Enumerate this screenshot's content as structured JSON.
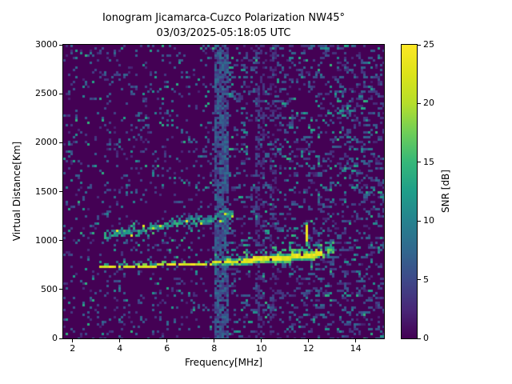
{
  "chart_data": {
    "type": "heatmap",
    "title": "Ionogram Jicamarca-Cuzco Polarization NW45°",
    "subtitle": "03/03/2025-05:18:05 UTC",
    "xlabel": "Frequency[MHz]",
    "ylabel": "Virtual Distance[Km]",
    "x_range": [
      1.6,
      15.2
    ],
    "y_range": [
      0,
      3000
    ],
    "x_ticks": [
      2,
      4,
      6,
      8,
      10,
      12,
      14
    ],
    "y_ticks": [
      0,
      500,
      1000,
      1500,
      2000,
      2500,
      3000
    ],
    "grid": false,
    "background_color": "#ffffff",
    "colorbar": {
      "label": "SNR [dB]",
      "range": [
        0,
        25
      ],
      "ticks": [
        0,
        5,
        10,
        15,
        20,
        25
      ],
      "colormap": "viridis",
      "stops": [
        [
          0.0,
          "#440154"
        ],
        [
          0.1,
          "#482878"
        ],
        [
          0.2,
          "#3e4989"
        ],
        [
          0.3,
          "#31688e"
        ],
        [
          0.4,
          "#26828e"
        ],
        [
          0.5,
          "#1f9e89"
        ],
        [
          0.6,
          "#35b779"
        ],
        [
          0.7,
          "#6ece58"
        ],
        [
          0.8,
          "#b5de2b"
        ],
        [
          0.9,
          "#dce319"
        ],
        [
          1.0,
          "#fde725"
        ]
      ]
    },
    "noise": {
      "background_db": 0,
      "speckle_db_range": [
        2,
        15
      ],
      "base_density": 0.11,
      "right_side_extra_density": 0.14
    },
    "interference_bands": [
      {
        "freq_mhz": 8.3,
        "width_mhz": 0.55,
        "db": 6,
        "density": 0.8
      },
      {
        "freq_mhz": 9.8,
        "width_mhz": 0.1,
        "db": 4,
        "density": 0.5
      },
      {
        "freq_mhz": 10.05,
        "width_mhz": 0.15,
        "db": 3,
        "density": 0.3
      },
      {
        "freq_mhz": 10.5,
        "width_mhz": 0.25,
        "db": 3,
        "density": 0.3
      }
    ],
    "echo_traces": [
      {
        "name": "main F-region echo",
        "style": "bright",
        "freq_span_mhz": [
          3.2,
          13.05
        ],
        "points_freq_km": [
          [
            3.2,
            728
          ],
          [
            4,
            733
          ],
          [
            5,
            740
          ],
          [
            6,
            747
          ],
          [
            7,
            756
          ],
          [
            8,
            768
          ],
          [
            9,
            790
          ],
          [
            10,
            808
          ],
          [
            11,
            828
          ],
          [
            12,
            850
          ],
          [
            12.5,
            862
          ],
          [
            13,
            882
          ]
        ],
        "thickness_freq_km": [
          [
            3.2,
            15
          ],
          [
            7.5,
            20
          ],
          [
            8,
            40
          ],
          [
            9,
            60
          ],
          [
            10,
            70
          ],
          [
            11,
            80
          ],
          [
            12,
            85
          ],
          [
            13,
            55
          ]
        ],
        "thin_until_mhz": 7.9,
        "peak_snr_db": 25
      },
      {
        "name": "second-hop echo",
        "style": "speckled",
        "freq_span_mhz": [
          3.4,
          8.8
        ],
        "points_freq_km": [
          [
            3.4,
            1050
          ],
          [
            4,
            1075
          ],
          [
            4.5,
            1095
          ],
          [
            5,
            1115
          ],
          [
            5.5,
            1135
          ],
          [
            6,
            1155
          ],
          [
            6.5,
            1172
          ],
          [
            7,
            1190
          ],
          [
            7.5,
            1210
          ],
          [
            8,
            1232
          ],
          [
            8.5,
            1252
          ],
          [
            8.8,
            1265
          ]
        ],
        "spread_km": 110,
        "typical_snr_db": 14
      },
      {
        "name": "vertical dash artifact",
        "style": "dash",
        "freq_mhz": 11.9,
        "km_span": [
          1000,
          1148
        ],
        "snr_db": 24
      }
    ]
  }
}
